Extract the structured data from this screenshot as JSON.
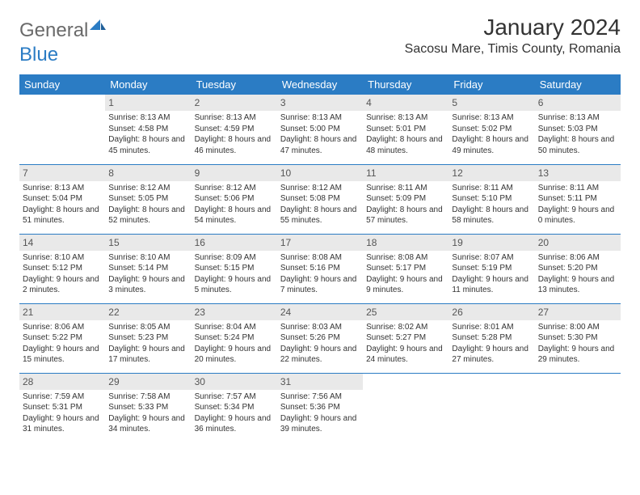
{
  "logo": {
    "general": "General",
    "blue": "Blue"
  },
  "title": "January 2024",
  "location": "Sacosu Mare, Timis County, Romania",
  "dow": [
    "Sunday",
    "Monday",
    "Tuesday",
    "Wednesday",
    "Thursday",
    "Friday",
    "Saturday"
  ],
  "colors": {
    "header_bg": "#2b7cc4",
    "header_text": "#ffffff",
    "daybar_bg": "#e9e9e9",
    "text": "#333333",
    "logo_blue": "#2b7cc4",
    "logo_gray": "#6a6a6a",
    "divider": "#2b7cc4"
  },
  "weeks": [
    [
      {
        "n": "",
        "sr": "",
        "ss": "",
        "dl": ""
      },
      {
        "n": "1",
        "sr": "Sunrise: 8:13 AM",
        "ss": "Sunset: 4:58 PM",
        "dl": "Daylight: 8 hours and 45 minutes."
      },
      {
        "n": "2",
        "sr": "Sunrise: 8:13 AM",
        "ss": "Sunset: 4:59 PM",
        "dl": "Daylight: 8 hours and 46 minutes."
      },
      {
        "n": "3",
        "sr": "Sunrise: 8:13 AM",
        "ss": "Sunset: 5:00 PM",
        "dl": "Daylight: 8 hours and 47 minutes."
      },
      {
        "n": "4",
        "sr": "Sunrise: 8:13 AM",
        "ss": "Sunset: 5:01 PM",
        "dl": "Daylight: 8 hours and 48 minutes."
      },
      {
        "n": "5",
        "sr": "Sunrise: 8:13 AM",
        "ss": "Sunset: 5:02 PM",
        "dl": "Daylight: 8 hours and 49 minutes."
      },
      {
        "n": "6",
        "sr": "Sunrise: 8:13 AM",
        "ss": "Sunset: 5:03 PM",
        "dl": "Daylight: 8 hours and 50 minutes."
      }
    ],
    [
      {
        "n": "7",
        "sr": "Sunrise: 8:13 AM",
        "ss": "Sunset: 5:04 PM",
        "dl": "Daylight: 8 hours and 51 minutes."
      },
      {
        "n": "8",
        "sr": "Sunrise: 8:12 AM",
        "ss": "Sunset: 5:05 PM",
        "dl": "Daylight: 8 hours and 52 minutes."
      },
      {
        "n": "9",
        "sr": "Sunrise: 8:12 AM",
        "ss": "Sunset: 5:06 PM",
        "dl": "Daylight: 8 hours and 54 minutes."
      },
      {
        "n": "10",
        "sr": "Sunrise: 8:12 AM",
        "ss": "Sunset: 5:08 PM",
        "dl": "Daylight: 8 hours and 55 minutes."
      },
      {
        "n": "11",
        "sr": "Sunrise: 8:11 AM",
        "ss": "Sunset: 5:09 PM",
        "dl": "Daylight: 8 hours and 57 minutes."
      },
      {
        "n": "12",
        "sr": "Sunrise: 8:11 AM",
        "ss": "Sunset: 5:10 PM",
        "dl": "Daylight: 8 hours and 58 minutes."
      },
      {
        "n": "13",
        "sr": "Sunrise: 8:11 AM",
        "ss": "Sunset: 5:11 PM",
        "dl": "Daylight: 9 hours and 0 minutes."
      }
    ],
    [
      {
        "n": "14",
        "sr": "Sunrise: 8:10 AM",
        "ss": "Sunset: 5:12 PM",
        "dl": "Daylight: 9 hours and 2 minutes."
      },
      {
        "n": "15",
        "sr": "Sunrise: 8:10 AM",
        "ss": "Sunset: 5:14 PM",
        "dl": "Daylight: 9 hours and 3 minutes."
      },
      {
        "n": "16",
        "sr": "Sunrise: 8:09 AM",
        "ss": "Sunset: 5:15 PM",
        "dl": "Daylight: 9 hours and 5 minutes."
      },
      {
        "n": "17",
        "sr": "Sunrise: 8:08 AM",
        "ss": "Sunset: 5:16 PM",
        "dl": "Daylight: 9 hours and 7 minutes."
      },
      {
        "n": "18",
        "sr": "Sunrise: 8:08 AM",
        "ss": "Sunset: 5:17 PM",
        "dl": "Daylight: 9 hours and 9 minutes."
      },
      {
        "n": "19",
        "sr": "Sunrise: 8:07 AM",
        "ss": "Sunset: 5:19 PM",
        "dl": "Daylight: 9 hours and 11 minutes."
      },
      {
        "n": "20",
        "sr": "Sunrise: 8:06 AM",
        "ss": "Sunset: 5:20 PM",
        "dl": "Daylight: 9 hours and 13 minutes."
      }
    ],
    [
      {
        "n": "21",
        "sr": "Sunrise: 8:06 AM",
        "ss": "Sunset: 5:22 PM",
        "dl": "Daylight: 9 hours and 15 minutes."
      },
      {
        "n": "22",
        "sr": "Sunrise: 8:05 AM",
        "ss": "Sunset: 5:23 PM",
        "dl": "Daylight: 9 hours and 17 minutes."
      },
      {
        "n": "23",
        "sr": "Sunrise: 8:04 AM",
        "ss": "Sunset: 5:24 PM",
        "dl": "Daylight: 9 hours and 20 minutes."
      },
      {
        "n": "24",
        "sr": "Sunrise: 8:03 AM",
        "ss": "Sunset: 5:26 PM",
        "dl": "Daylight: 9 hours and 22 minutes."
      },
      {
        "n": "25",
        "sr": "Sunrise: 8:02 AM",
        "ss": "Sunset: 5:27 PM",
        "dl": "Daylight: 9 hours and 24 minutes."
      },
      {
        "n": "26",
        "sr": "Sunrise: 8:01 AM",
        "ss": "Sunset: 5:28 PM",
        "dl": "Daylight: 9 hours and 27 minutes."
      },
      {
        "n": "27",
        "sr": "Sunrise: 8:00 AM",
        "ss": "Sunset: 5:30 PM",
        "dl": "Daylight: 9 hours and 29 minutes."
      }
    ],
    [
      {
        "n": "28",
        "sr": "Sunrise: 7:59 AM",
        "ss": "Sunset: 5:31 PM",
        "dl": "Daylight: 9 hours and 31 minutes."
      },
      {
        "n": "29",
        "sr": "Sunrise: 7:58 AM",
        "ss": "Sunset: 5:33 PM",
        "dl": "Daylight: 9 hours and 34 minutes."
      },
      {
        "n": "30",
        "sr": "Sunrise: 7:57 AM",
        "ss": "Sunset: 5:34 PM",
        "dl": "Daylight: 9 hours and 36 minutes."
      },
      {
        "n": "31",
        "sr": "Sunrise: 7:56 AM",
        "ss": "Sunset: 5:36 PM",
        "dl": "Daylight: 9 hours and 39 minutes."
      },
      {
        "n": "",
        "sr": "",
        "ss": "",
        "dl": ""
      },
      {
        "n": "",
        "sr": "",
        "ss": "",
        "dl": ""
      },
      {
        "n": "",
        "sr": "",
        "ss": "",
        "dl": ""
      }
    ]
  ]
}
